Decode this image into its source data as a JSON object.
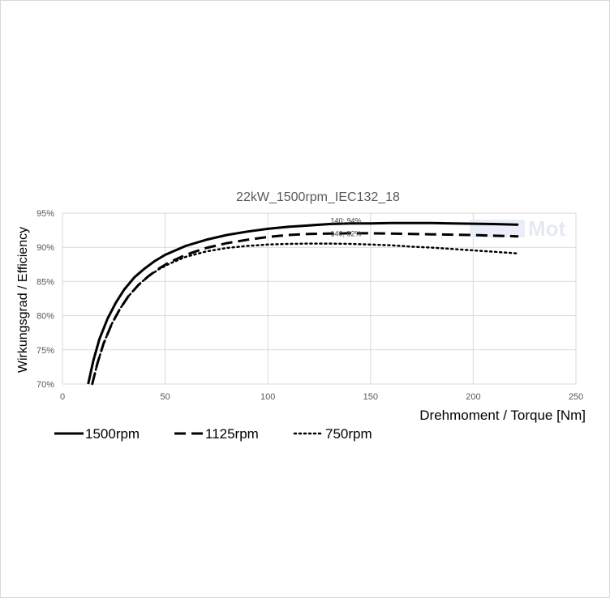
{
  "chart_data": {
    "type": "line",
    "title": "22kW_1500rpm_IEC132_18",
    "xlabel": "Drehmoment / Torque [Nm]",
    "ylabel": "Wirkungsgrad / Efficiency",
    "xlim": [
      0,
      250
    ],
    "ylim": [
      70,
      95
    ],
    "xticks": [
      "0",
      "50",
      "100",
      "150",
      "200",
      "250"
    ],
    "yticks": [
      "70%",
      "75%",
      "80%",
      "85%",
      "90%",
      "95%"
    ],
    "grid": true,
    "legend_position": "bottom-left",
    "watermark": "Mot",
    "series": [
      {
        "name": "1500rpm",
        "style": "solid",
        "x": [
          12.5,
          15,
          18,
          22,
          26,
          30,
          35,
          40,
          45,
          50,
          60,
          70,
          80,
          90,
          100,
          110,
          120,
          130,
          140,
          150,
          160,
          170,
          180,
          190,
          200,
          210,
          222
        ],
        "y": [
          70.0,
          73.4,
          76.6,
          79.6,
          81.9,
          83.8,
          85.6,
          86.9,
          88.0,
          88.9,
          90.2,
          91.1,
          91.8,
          92.3,
          92.7,
          93.0,
          93.2,
          93.4,
          93.5,
          93.5,
          93.55,
          93.55,
          93.55,
          93.5,
          93.45,
          93.4,
          93.3
        ],
        "annotation": {
          "x": 140,
          "y": 94,
          "text": "140; 94%"
        }
      },
      {
        "name": "1125rpm",
        "style": "dashed",
        "x": [
          14.5,
          17,
          20,
          24,
          28,
          32,
          37,
          42,
          47,
          52,
          60,
          70,
          80,
          90,
          100,
          110,
          120,
          130,
          140,
          150,
          160,
          170,
          180,
          190,
          200,
          210,
          222
        ],
        "y": [
          70.0,
          73.0,
          75.9,
          78.8,
          81.0,
          82.8,
          84.5,
          85.8,
          86.9,
          87.8,
          88.9,
          89.9,
          90.6,
          91.1,
          91.5,
          91.8,
          91.95,
          92.0,
          92.05,
          92.05,
          92.0,
          91.95,
          91.9,
          91.85,
          91.8,
          91.7,
          91.6
        ],
        "annotation": {
          "x": 140,
          "y": 92,
          "text": "140; 92%"
        }
      },
      {
        "name": "750rpm",
        "style": "dotted",
        "x": [
          14.5,
          17,
          20,
          24,
          28,
          32,
          37,
          42,
          47,
          52,
          60,
          70,
          80,
          90,
          100,
          110,
          120,
          130,
          140,
          150,
          160,
          170,
          180,
          190,
          200,
          210,
          222
        ],
        "y": [
          70.0,
          73.0,
          75.9,
          78.8,
          81.0,
          82.8,
          84.5,
          85.8,
          86.8,
          87.6,
          88.6,
          89.4,
          89.9,
          90.2,
          90.4,
          90.5,
          90.55,
          90.55,
          90.5,
          90.4,
          90.3,
          90.1,
          89.95,
          89.75,
          89.55,
          89.35,
          89.1
        ]
      }
    ]
  }
}
